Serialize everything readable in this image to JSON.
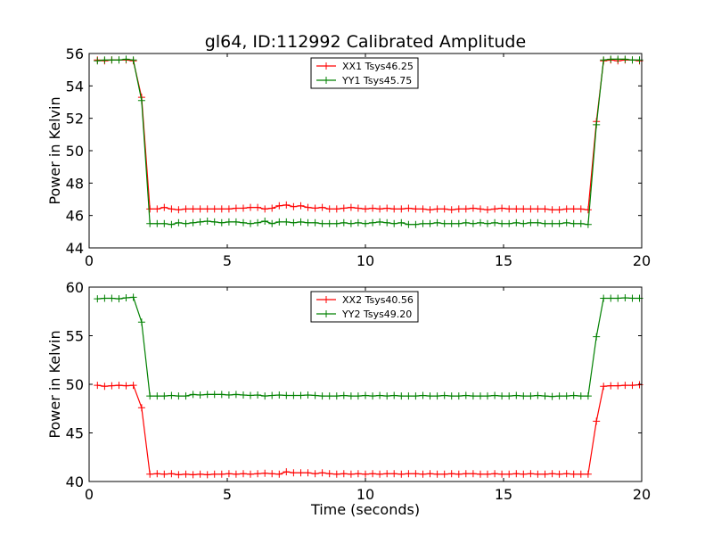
{
  "chart_data": [
    {
      "type": "line",
      "title": "gl64, ID:112992 Calibrated Amplitude",
      "xlabel": "",
      "ylabel": "Power in Kelvin",
      "xlim": [
        0,
        20
      ],
      "ylim": [
        44,
        56
      ],
      "xticks": [
        0,
        5,
        10,
        15,
        20
      ],
      "yticks": [
        44,
        46,
        48,
        50,
        52,
        54,
        56
      ],
      "grid": false,
      "legend_position": "upper-center",
      "x": [
        0.3,
        0.56,
        0.82,
        1.08,
        1.34,
        1.6,
        1.9,
        2.2,
        2.46,
        2.72,
        2.98,
        3.24,
        3.5,
        3.76,
        4.02,
        4.28,
        4.54,
        4.8,
        5.06,
        5.32,
        5.58,
        5.84,
        6.1,
        6.36,
        6.62,
        6.88,
        7.14,
        7.4,
        7.66,
        7.92,
        8.18,
        8.44,
        8.7,
        8.96,
        9.22,
        9.48,
        9.74,
        10.0,
        10.26,
        10.52,
        10.78,
        11.04,
        11.3,
        11.56,
        11.82,
        12.08,
        12.34,
        12.6,
        12.86,
        13.12,
        13.38,
        13.64,
        13.9,
        14.16,
        14.42,
        14.68,
        14.94,
        15.2,
        15.46,
        15.72,
        15.98,
        16.24,
        16.5,
        16.76,
        17.02,
        17.28,
        17.54,
        17.8,
        18.06,
        18.36,
        18.62,
        18.88,
        19.14,
        19.4,
        19.66,
        19.92
      ],
      "series": [
        {
          "name": "XX1 Tsys46.25",
          "color": "#ff0000",
          "values": [
            55.6,
            55.55,
            55.6,
            55.6,
            55.6,
            55.55,
            53.3,
            46.4,
            46.4,
            46.5,
            46.4,
            46.35,
            46.4,
            46.4,
            46.4,
            46.4,
            46.4,
            46.4,
            46.4,
            46.45,
            46.45,
            46.5,
            46.5,
            46.4,
            46.45,
            46.6,
            46.65,
            46.55,
            46.6,
            46.5,
            46.45,
            46.5,
            46.4,
            46.4,
            46.45,
            46.5,
            46.45,
            46.4,
            46.45,
            46.4,
            46.45,
            46.4,
            46.4,
            46.45,
            46.4,
            46.4,
            46.35,
            46.4,
            46.4,
            46.35,
            46.4,
            46.4,
            46.45,
            46.4,
            46.35,
            46.4,
            46.45,
            46.4,
            46.4,
            46.4,
            46.4,
            46.4,
            46.4,
            46.35,
            46.35,
            46.4,
            46.4,
            46.4,
            46.35,
            51.8,
            55.55,
            55.6,
            55.55,
            55.6,
            55.6,
            55.55
          ]
        },
        {
          "name": "YY1 Tsys45.75",
          "color": "#008000",
          "values": [
            55.55,
            55.6,
            55.6,
            55.6,
            55.65,
            55.6,
            53.1,
            45.5,
            45.5,
            45.5,
            45.45,
            45.55,
            45.5,
            45.55,
            45.6,
            45.65,
            45.6,
            45.55,
            45.6,
            45.6,
            45.55,
            45.5,
            45.55,
            45.65,
            45.5,
            45.6,
            45.6,
            45.55,
            45.6,
            45.55,
            45.55,
            45.5,
            45.5,
            45.5,
            45.55,
            45.5,
            45.55,
            45.5,
            45.55,
            45.6,
            45.55,
            45.5,
            45.55,
            45.45,
            45.45,
            45.5,
            45.5,
            45.55,
            45.5,
            45.5,
            45.5,
            45.55,
            45.5,
            45.55,
            45.5,
            45.55,
            45.5,
            45.5,
            45.55,
            45.5,
            45.55,
            45.55,
            45.5,
            45.5,
            45.5,
            45.55,
            45.5,
            45.5,
            45.45,
            51.6,
            55.6,
            55.65,
            55.65,
            55.65,
            55.6,
            55.6
          ]
        }
      ]
    },
    {
      "type": "line",
      "title": "",
      "xlabel": "Time (seconds)",
      "ylabel": "Power in Kelvin",
      "xlim": [
        0,
        20
      ],
      "ylim": [
        40,
        60
      ],
      "xticks": [
        0,
        5,
        10,
        15,
        20
      ],
      "yticks": [
        40,
        45,
        50,
        55,
        60
      ],
      "grid": false,
      "legend_position": "upper-center",
      "x": [
        0.3,
        0.56,
        0.82,
        1.08,
        1.34,
        1.6,
        1.9,
        2.2,
        2.46,
        2.72,
        2.98,
        3.24,
        3.5,
        3.76,
        4.02,
        4.28,
        4.54,
        4.8,
        5.06,
        5.32,
        5.58,
        5.84,
        6.1,
        6.36,
        6.62,
        6.88,
        7.14,
        7.4,
        7.66,
        7.92,
        8.18,
        8.44,
        8.7,
        8.96,
        9.22,
        9.48,
        9.74,
        10.0,
        10.26,
        10.52,
        10.78,
        11.04,
        11.3,
        11.56,
        11.82,
        12.08,
        12.34,
        12.6,
        12.86,
        13.12,
        13.38,
        13.64,
        13.9,
        14.16,
        14.42,
        14.68,
        14.94,
        15.2,
        15.46,
        15.72,
        15.98,
        16.24,
        16.5,
        16.76,
        17.02,
        17.28,
        17.54,
        17.8,
        18.06,
        18.36,
        18.62,
        18.88,
        19.14,
        19.4,
        19.66,
        19.92
      ],
      "series": [
        {
          "name": "XX2 Tsys40.56",
          "color": "#ff0000",
          "values": [
            49.9,
            49.8,
            49.85,
            49.9,
            49.85,
            49.9,
            47.6,
            40.75,
            40.8,
            40.75,
            40.8,
            40.7,
            40.75,
            40.7,
            40.75,
            40.7,
            40.75,
            40.75,
            40.8,
            40.75,
            40.8,
            40.75,
            40.8,
            40.85,
            40.8,
            40.75,
            41.0,
            40.9,
            40.9,
            40.9,
            40.8,
            40.9,
            40.8,
            40.75,
            40.8,
            40.75,
            40.8,
            40.75,
            40.8,
            40.75,
            40.8,
            40.8,
            40.75,
            40.8,
            40.8,
            40.75,
            40.8,
            40.75,
            40.75,
            40.8,
            40.75,
            40.8,
            40.8,
            40.75,
            40.75,
            40.8,
            40.75,
            40.75,
            40.8,
            40.75,
            40.8,
            40.75,
            40.75,
            40.8,
            40.75,
            40.8,
            40.75,
            40.75,
            40.75,
            46.2,
            49.8,
            49.85,
            49.85,
            49.9,
            49.9,
            49.95
          ]
        },
        {
          "name": "YY2 Tsys49.20",
          "color": "#008000",
          "values": [
            58.8,
            58.85,
            58.85,
            58.8,
            58.9,
            58.95,
            56.4,
            48.8,
            48.8,
            48.8,
            48.85,
            48.8,
            48.8,
            48.95,
            48.9,
            48.95,
            48.95,
            48.95,
            48.9,
            48.95,
            48.9,
            48.85,
            48.9,
            48.8,
            48.85,
            48.9,
            48.85,
            48.85,
            48.85,
            48.9,
            48.85,
            48.8,
            48.8,
            48.8,
            48.85,
            48.8,
            48.8,
            48.85,
            48.8,
            48.85,
            48.8,
            48.85,
            48.8,
            48.8,
            48.8,
            48.85,
            48.8,
            48.8,
            48.85,
            48.8,
            48.8,
            48.85,
            48.8,
            48.8,
            48.8,
            48.85,
            48.8,
            48.8,
            48.85,
            48.8,
            48.8,
            48.85,
            48.8,
            48.75,
            48.8,
            48.8,
            48.85,
            48.8,
            48.8,
            54.9,
            58.85,
            58.85,
            58.85,
            58.9,
            58.85,
            58.85
          ]
        }
      ]
    }
  ]
}
